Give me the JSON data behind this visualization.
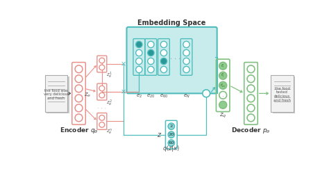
{
  "bg_color": "#ffffff",
  "title": "Embedding Space",
  "encoder_label": "Encoder $q_\\theta$",
  "decoder_label": "Decoder $p_\\theta$",
  "qzx_label": "$q(z|x)$",
  "z_label": "$z$",
  "zq_label": "$z_q$",
  "ze_label": "$z_e$",
  "input_text": "the food was\nvery delicious\nand fresh",
  "output_text": "the food\ntasted\ndelicious\nand fresh",
  "salmon": "#E8918A",
  "teal": "#50BCBC",
  "teal_dark": "#2A9898",
  "teal_fill": "#3AABAB",
  "teal_light": "#C8ECEC",
  "green": "#80C080",
  "green_dark": "#4A8A4A",
  "green_light": "#C0E8C0",
  "salmon_light": "#F5D0CC"
}
